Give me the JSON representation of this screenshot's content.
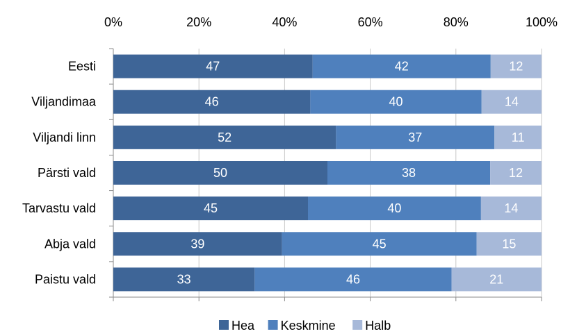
{
  "chart_data": {
    "type": "bar",
    "orientation": "horizontal",
    "stacked": "percent",
    "title": "",
    "xlabel": "",
    "ylabel": "",
    "xlim": [
      0,
      100
    ],
    "x_tick_labels": [
      "0%",
      "20%",
      "40%",
      "60%",
      "80%",
      "100%"
    ],
    "grid": true,
    "legend_position": "bottom",
    "categories": [
      "Eesti",
      "Viljandimaa",
      "Viljandi linn",
      "Pärsti vald",
      "Tarvastu vald",
      "Abja vald",
      "Paistu vald"
    ],
    "series": [
      {
        "name": "Hea",
        "color": "#3e6597",
        "values": [
          47,
          46,
          52,
          50,
          45,
          39,
          33
        ]
      },
      {
        "name": "Keskmine",
        "color": "#4f80bd",
        "values": [
          42,
          40,
          37,
          38,
          40,
          45,
          46
        ]
      },
      {
        "name": "Halb",
        "color": "#a7b9d9",
        "values": [
          12,
          14,
          11,
          12,
          14,
          15,
          21
        ]
      }
    ]
  }
}
